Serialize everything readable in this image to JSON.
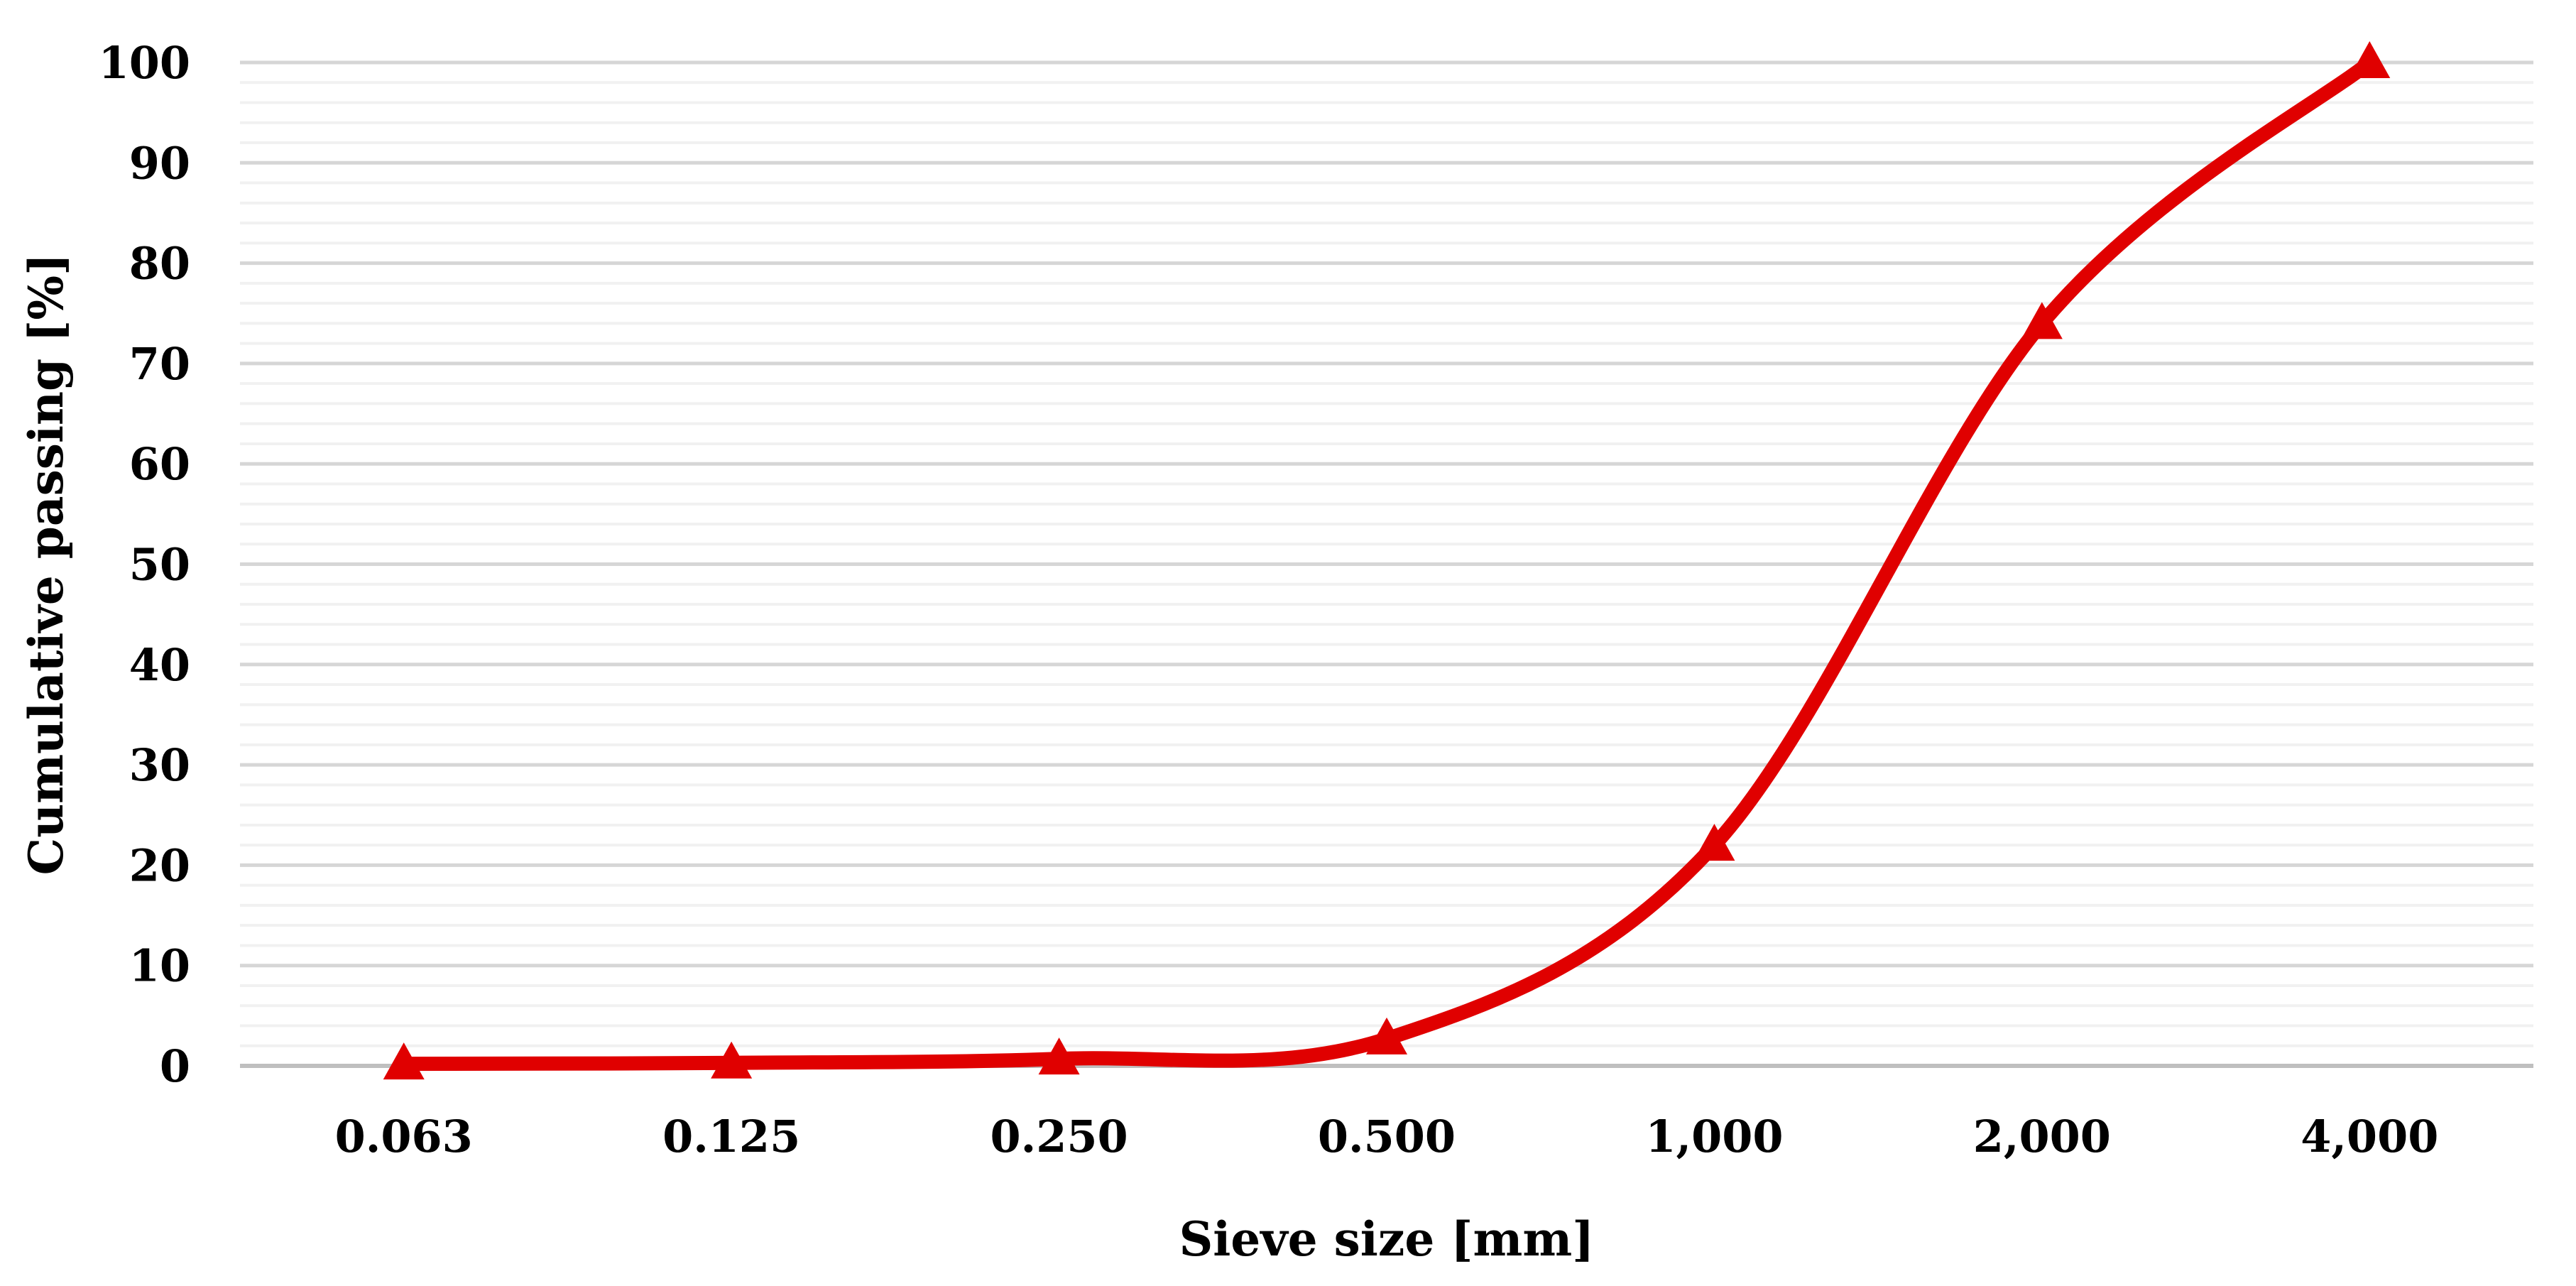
{
  "chart_data": {
    "type": "line",
    "title": "",
    "xlabel": "Sieve size [mm]",
    "ylabel": "Cumulative passing [%]",
    "categories": [
      "0.063",
      "0.125",
      "0.250",
      "0.500",
      "1,000",
      "2,000",
      "4,000"
    ],
    "series": [
      {
        "name": "Cumulative passing",
        "values": [
          0.2,
          0.3,
          0.7,
          2.7,
          22,
          74,
          100
        ],
        "color": "#e00000",
        "marker": "triangle-up",
        "smoothed": true
      }
    ],
    "ylim": [
      0,
      100
    ],
    "y_major_unit": 10,
    "y_minor_unit": 2,
    "y_tick_labels": [
      "0",
      "10",
      "20",
      "30",
      "40",
      "50",
      "60",
      "70",
      "80",
      "90",
      "100"
    ],
    "grid": "horizontal major+minor",
    "legend_position": "none",
    "colors": {
      "major_gridline": "#d6d6d6",
      "minor_gridline": "#f1f1f1",
      "axis_line": "#bfbfbf",
      "background": "#ffffff",
      "text": "#000000"
    }
  }
}
